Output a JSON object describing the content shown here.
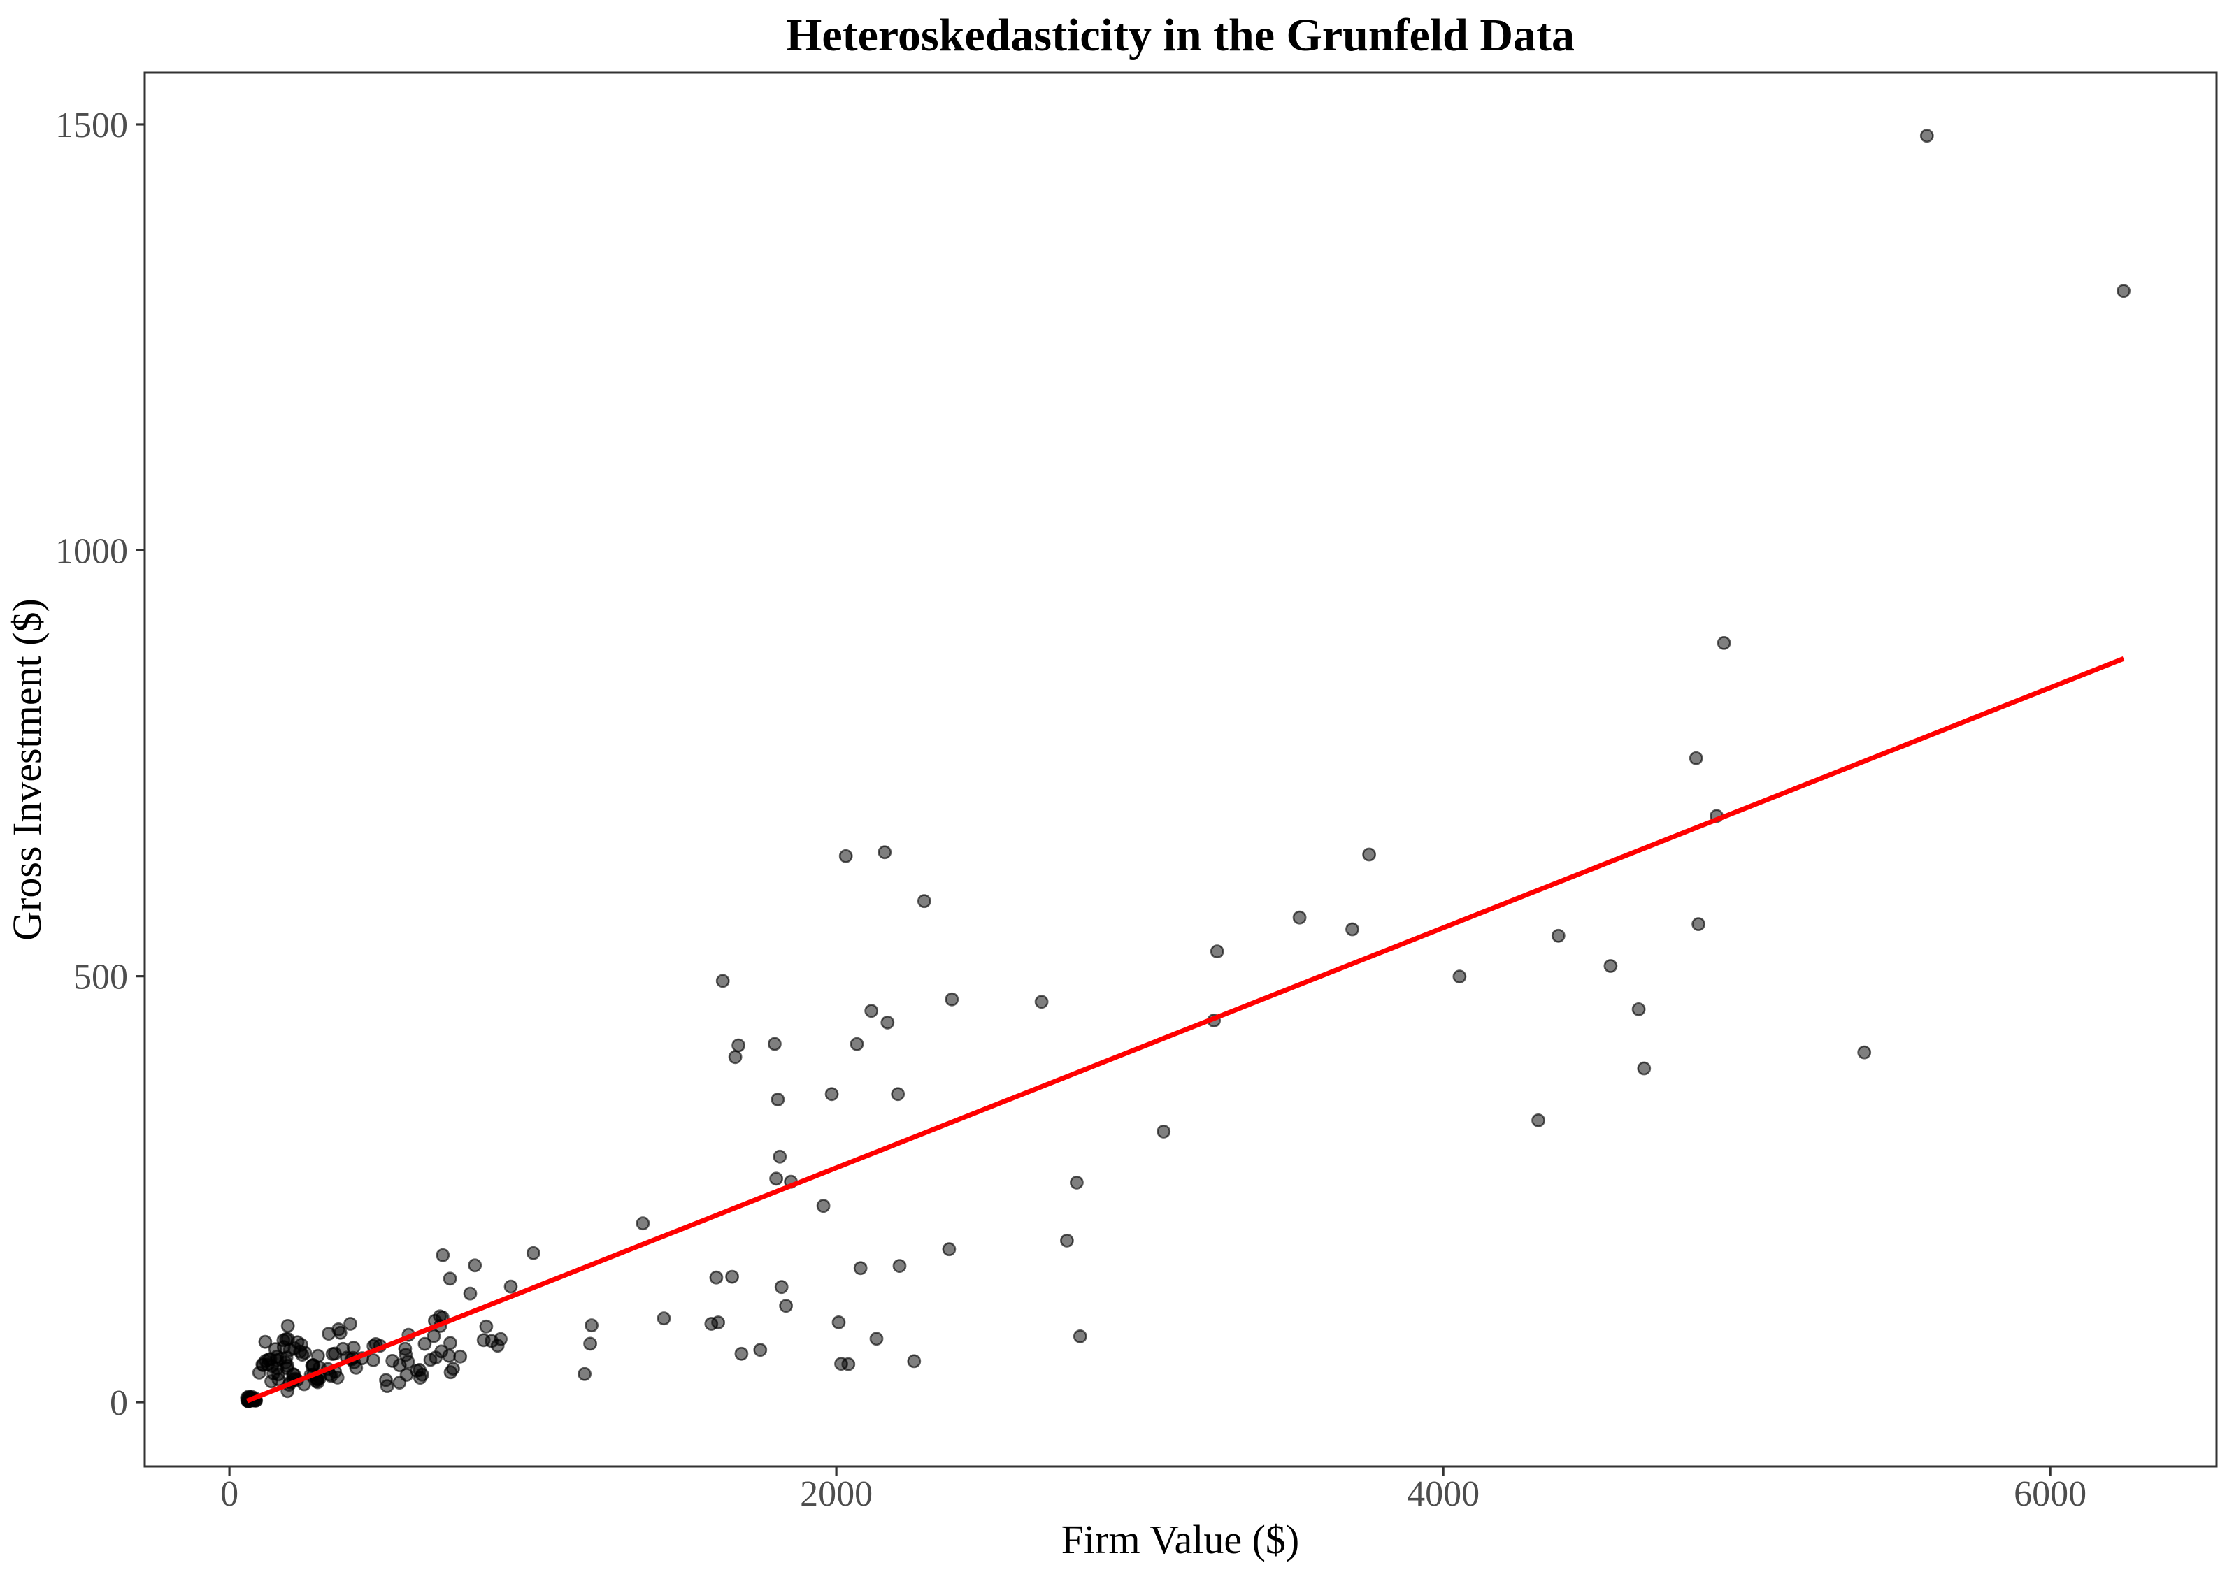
{
  "chart_data": {
    "type": "scatter",
    "title": "Heteroskedasticity in the Grunfeld Data",
    "xlabel": "Firm Value ($)",
    "ylabel": "Gross Investment ($)",
    "xlim": [
      -279,
      6548
    ],
    "ylim": [
      -75.5,
      1560.7
    ],
    "x_ticks": [
      0,
      2000,
      4000,
      6000
    ],
    "x_tick_labels": [
      "0",
      "2000",
      "4000",
      "6000"
    ],
    "y_ticks": [
      0,
      500,
      1000,
      1500
    ],
    "y_tick_labels": [
      "0",
      "500",
      "1000",
      "1500"
    ],
    "grid": false,
    "legend": "none",
    "colors": {
      "point_fill": "#000000",
      "point_stroke": "#000000",
      "regression_line": "#ff0000",
      "axis_text": "#4d4d4d",
      "panel_border": "#333333",
      "background": "#ffffff"
    },
    "point_style": {
      "radius": 8.6,
      "fill_opacity": 0.5,
      "stroke_opacity": 0.62,
      "stroke_width": 2.6
    },
    "regression": {
      "method": "lm",
      "slope": 0.1409,
      "intercept": -6.7,
      "x1": 58.1,
      "y1": 1.5,
      "x2": 6241.7,
      "y2": 872.8,
      "width": 7
    },
    "points": [
      [
        3078.5,
        317.6
      ],
      [
        4661.7,
        391.8
      ],
      [
        5387.1,
        410.6
      ],
      [
        2792.2,
        257.7
      ],
      [
        4313.2,
        330.8
      ],
      [
        4643.9,
        461.2
      ],
      [
        4551.2,
        512.0
      ],
      [
        3244.1,
        448.0
      ],
      [
        4053.7,
        499.6
      ],
      [
        4379.3,
        547.5
      ],
      [
        4840.9,
        561.2
      ],
      [
        4900.9,
        688.1
      ],
      [
        3526.5,
        568.9
      ],
      [
        3254.7,
        529.2
      ],
      [
        3700.2,
        555.1
      ],
      [
        3755.6,
        642.9
      ],
      [
        4833.0,
        755.9
      ],
      [
        4924.9,
        891.2
      ],
      [
        6241.7,
        1304.4
      ],
      [
        5593.6,
        1486.7
      ],
      [
        1362.4,
        209.9
      ],
      [
        1807.1,
        355.3
      ],
      [
        2676.3,
        469.9
      ],
      [
        1801.9,
        262.3
      ],
      [
        1957.3,
        230.4
      ],
      [
        2202.9,
        361.6
      ],
      [
        2380.5,
        472.8
      ],
      [
        2168.6,
        445.6
      ],
      [
        1985.1,
        361.6
      ],
      [
        1813.9,
        288.2
      ],
      [
        1850.2,
        258.7
      ],
      [
        2067.7,
        420.3
      ],
      [
        1796.7,
        420.5
      ],
      [
        1625.8,
        494.5
      ],
      [
        1667.0,
        405.1
      ],
      [
        1677.4,
        418.8
      ],
      [
        2289.5,
        588.2
      ],
      [
        2159.4,
        645.5
      ],
      [
        2031.3,
        641.0
      ],
      [
        2115.5,
        459.3
      ],
      [
        1170.6,
        33.1
      ],
      [
        2015.8,
        45.0
      ],
      [
        2803.3,
        77.2
      ],
      [
        2039.7,
        44.6
      ],
      [
        2256.2,
        48.1
      ],
      [
        2132.2,
        74.4
      ],
      [
        1834.1,
        113.0
      ],
      [
        1588.0,
        91.9
      ],
      [
        1749.4,
        61.3
      ],
      [
        1687.2,
        56.8
      ],
      [
        2007.7,
        93.6
      ],
      [
        2208.3,
        159.9
      ],
      [
        1656.7,
        147.2
      ],
      [
        1604.4,
        146.3
      ],
      [
        1431.8,
        98.3
      ],
      [
        1610.5,
        93.5
      ],
      [
        1819.4,
        135.2
      ],
      [
        2079.7,
        157.3
      ],
      [
        2371.6,
        179.5
      ],
      [
        2759.9,
        189.6
      ],
      [
        417.5,
        40.3
      ],
      [
        837.8,
        72.8
      ],
      [
        883.9,
        66.3
      ],
      [
        437.9,
        51.6
      ],
      [
        679.7,
        52.4
      ],
      [
        727.8,
        69.4
      ],
      [
        643.6,
        68.4
      ],
      [
        410.9,
        46.8
      ],
      [
        588.4,
        47.4
      ],
      [
        698.4,
        59.6
      ],
      [
        846.4,
        88.8
      ],
      [
        893.8,
        74.1
      ],
      [
        579.0,
        62.7
      ],
      [
        694.6,
        89.4
      ],
      [
        590.3,
        79.0
      ],
      [
        693.5,
        100.7
      ],
      [
        809.0,
        160.6
      ],
      [
        727.0,
        145.0
      ],
      [
        1001.5,
        174.9
      ],
      [
        703.2,
        172.5
      ],
      [
        157.7,
        39.7
      ],
      [
        167.9,
        50.7
      ],
      [
        192.9,
        74.2
      ],
      [
        156.7,
        53.5
      ],
      [
        191.4,
        42.7
      ],
      [
        185.5,
        46.5
      ],
      [
        199.6,
        61.4
      ],
      [
        189.5,
        39.7
      ],
      [
        151.2,
        62.2
      ],
      [
        187.7,
        52.3
      ],
      [
        214.7,
        63.2
      ],
      [
        232.9,
        59.4
      ],
      [
        249.0,
        58.0
      ],
      [
        224.5,
        70.3
      ],
      [
        237.3,
        67.4
      ],
      [
        240.1,
        55.7
      ],
      [
        327.3,
        80.3
      ],
      [
        359.4,
        85.4
      ],
      [
        398.4,
        91.9
      ],
      [
        365.7,
        81.4
      ],
      [
        197.0,
        20.4
      ],
      [
        210.3,
        26.0
      ],
      [
        223.1,
        25.9
      ],
      [
        216.7,
        27.5
      ],
      [
        286.4,
        24.6
      ],
      [
        298.0,
        28.5
      ],
      [
        276.9,
        43.4
      ],
      [
        272.6,
        42.8
      ],
      [
        287.4,
        27.8
      ],
      [
        330.3,
        32.6
      ],
      [
        324.4,
        39.0
      ],
      [
        401.9,
        50.2
      ],
      [
        407.4,
        51.9
      ],
      [
        409.2,
        64.0
      ],
      [
        482.2,
        68.2
      ],
      [
        673.8,
        77.5
      ],
      [
        676.9,
        95.3
      ],
      [
        702.0,
        99.5
      ],
      [
        793.5,
        127.5
      ],
      [
        927.3,
        135.7
      ],
      [
        138.0,
        24.4
      ],
      [
        200.1,
        23.2
      ],
      [
        210.1,
        32.8
      ],
      [
        161.2,
        32.5
      ],
      [
        161.7,
        26.7
      ],
      [
        145.1,
        33.7
      ],
      [
        110.6,
        43.5
      ],
      [
        98.1,
        34.5
      ],
      [
        108.8,
        44.3
      ],
      [
        118.2,
        70.8
      ],
      [
        126.5,
        44.1
      ],
      [
        156.7,
        49.0
      ],
      [
        119.4,
        48.5
      ],
      [
        129.1,
        50.0
      ],
      [
        134.8,
        50.6
      ],
      [
        140.8,
        42.5
      ],
      [
        179.0,
        64.8
      ],
      [
        178.1,
        72.7
      ],
      [
        186.8,
        73.9
      ],
      [
        192.7,
        89.5
      ],
      [
        191.5,
        12.9
      ],
      [
        516.0,
        25.9
      ],
      [
        729.0,
        35.1
      ],
      [
        560.4,
        22.9
      ],
      [
        519.9,
        18.8
      ],
      [
        628.5,
        28.6
      ],
      [
        537.1,
        48.5
      ],
      [
        561.2,
        43.3
      ],
      [
        617.2,
        37.0
      ],
      [
        626.7,
        37.8
      ],
      [
        737.2,
        39.3
      ],
      [
        760.5,
        53.5
      ],
      [
        581.4,
        55.6
      ],
      [
        662.3,
        49.6
      ],
      [
        583.8,
        32.0
      ],
      [
        635.2,
        32.2
      ],
      [
        723.8,
        54.4
      ],
      [
        864.1,
        71.8
      ],
      [
        1193.5,
        90.1
      ],
      [
        1188.9,
        68.6
      ],
      [
        290.6,
        26.6
      ],
      [
        291.1,
        23.4
      ],
      [
        335.0,
        30.7
      ],
      [
        246.0,
        20.9
      ],
      [
        356.2,
        28.8
      ],
      [
        289.8,
        26.9
      ],
      [
        268.2,
        32.1
      ],
      [
        213.3,
        32.2
      ],
      [
        348.2,
        35.7
      ],
      [
        374.2,
        62.5
      ],
      [
        387.2,
        52.3
      ],
      [
        347.4,
        57.0
      ],
      [
        291.9,
        54.3
      ],
      [
        297.2,
        40.5
      ],
      [
        276.9,
        32.5
      ],
      [
        274.6,
        43.5
      ],
      [
        339.9,
        56.5
      ],
      [
        474.8,
        66.0
      ],
      [
        496.0,
        66.1
      ],
      [
        474.5,
        49.3
      ],
      [
        70.9,
        2.5
      ],
      [
        87.9,
        2.0
      ],
      [
        82.2,
        2.2
      ],
      [
        58.7,
        2.0
      ],
      [
        80.5,
        2.0
      ],
      [
        86.5,
        1.8
      ],
      [
        77.7,
        2.1
      ],
      [
        62.2,
        1.9
      ],
      [
        62.2,
        0.9
      ],
      [
        61.8,
        1.2
      ],
      [
        65.9,
        1.4
      ],
      [
        69.5,
        2.2
      ],
      [
        65.0,
        3.8
      ],
      [
        68.0,
        5.7
      ],
      [
        71.2,
        4.2
      ],
      [
        69.1,
        3.4
      ],
      [
        83.0,
        4.7
      ],
      [
        74.4,
        6.0
      ],
      [
        63.5,
        6.5
      ],
      [
        58.1,
        5.1
      ]
    ]
  }
}
